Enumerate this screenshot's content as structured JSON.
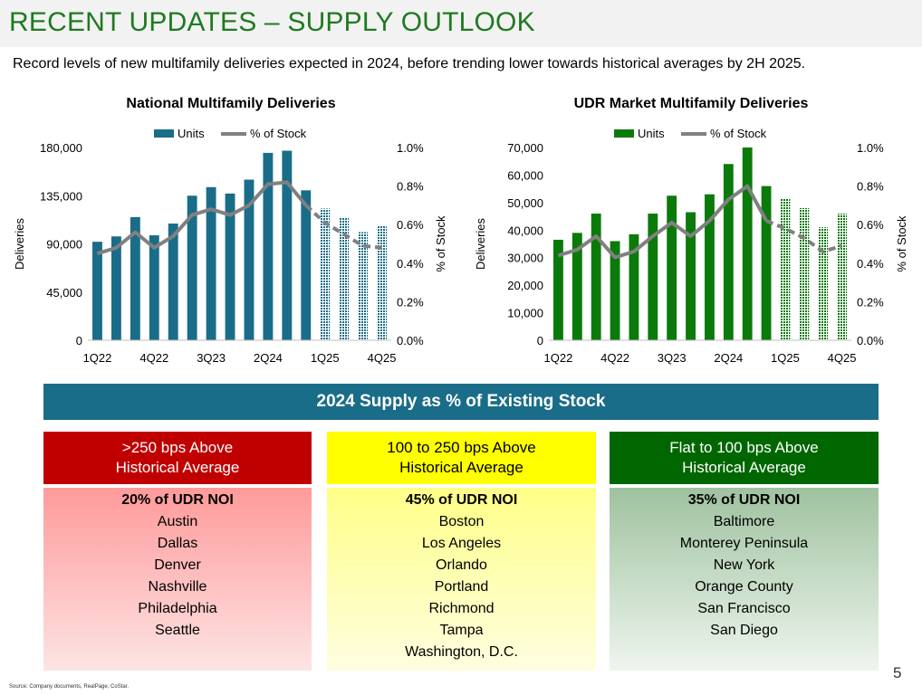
{
  "header": {
    "title": "RECENT UPDATES – SUPPLY OUTLOOK",
    "subtitle": "Record levels of new multifamily deliveries expected in 2024, before trending lower towards historical averages by 2H 2025."
  },
  "colors": {
    "title_green": "#1f7a1f",
    "national_bar": "#1a6d88",
    "udr_bar": "#0a7a0a",
    "line_gray": "#808080",
    "banner_blue": "#1a6d88",
    "red": "#c00000",
    "yellow": "#ffff00",
    "green": "#006600"
  },
  "chart_data": [
    {
      "type": "bar",
      "title": "National Multifamily Deliveries",
      "legend": [
        "Units",
        "% of Stock"
      ],
      "ylabel": "Deliveries",
      "y2label": "% of Stock",
      "ylim": [
        0,
        180000
      ],
      "y2lim": [
        0,
        1.0
      ],
      "yticks": [
        "180,000",
        "135,000",
        "90,000",
        "45,000",
        "0"
      ],
      "y2ticks": [
        "1.0%",
        "0.8%",
        "0.6%",
        "0.4%",
        "0.2%",
        "0.0%"
      ],
      "categories": [
        "1Q22",
        "2Q22",
        "3Q22",
        "4Q22",
        "1Q23",
        "2Q23",
        "3Q23",
        "4Q23",
        "1Q24",
        "2Q24",
        "3Q24",
        "4Q24",
        "1Q25",
        "2Q25",
        "3Q25",
        "4Q25"
      ],
      "xticklabels": [
        "1Q22",
        "4Q22",
        "3Q23",
        "2Q24",
        "1Q25",
        "4Q25"
      ],
      "xtick_indices": [
        0,
        3,
        6,
        9,
        12,
        15
      ],
      "forecast_start_index": 12,
      "series": [
        {
          "name": "Units",
          "values": [
            92000,
            97000,
            115000,
            98000,
            109000,
            135000,
            143000,
            137000,
            150000,
            175000,
            177000,
            140000,
            123000,
            115000,
            101000,
            107000
          ]
        },
        {
          "name": "% of Stock",
          "values": [
            0.45,
            0.48,
            0.56,
            0.48,
            0.54,
            0.65,
            0.68,
            0.65,
            0.7,
            0.81,
            0.82,
            0.7,
            0.61,
            0.55,
            0.49,
            0.48
          ]
        }
      ]
    },
    {
      "type": "bar",
      "title": "UDR Market Multifamily Deliveries",
      "legend": [
        "Units",
        "% of Stock"
      ],
      "ylabel": "Deliveries",
      "y2label": "% of Stock",
      "ylim": [
        0,
        70000
      ],
      "y2lim": [
        0,
        1.0
      ],
      "yticks": [
        "70,000",
        "60,000",
        "50,000",
        "40,000",
        "30,000",
        "20,000",
        "10,000",
        "0"
      ],
      "y2ticks": [
        "1.0%",
        "0.8%",
        "0.6%",
        "0.4%",
        "0.2%",
        "0.0%"
      ],
      "categories": [
        "1Q22",
        "2Q22",
        "3Q22",
        "4Q22",
        "1Q23",
        "2Q23",
        "3Q23",
        "4Q23",
        "1Q24",
        "2Q24",
        "3Q24",
        "4Q24",
        "1Q25",
        "2Q25",
        "3Q25",
        "4Q25"
      ],
      "xticklabels": [
        "1Q22",
        "4Q22",
        "3Q23",
        "2Q24",
        "1Q25",
        "4Q25"
      ],
      "xtick_indices": [
        0,
        3,
        6,
        9,
        12,
        15
      ],
      "forecast_start_index": 12,
      "series": [
        {
          "name": "Units",
          "values": [
            36500,
            39000,
            46000,
            36000,
            38500,
            46000,
            52500,
            46500,
            53000,
            64000,
            70000,
            56000,
            51500,
            48000,
            41000,
            46000
          ]
        },
        {
          "name": "% of Stock",
          "values": [
            0.44,
            0.47,
            0.54,
            0.43,
            0.46,
            0.54,
            0.61,
            0.54,
            0.62,
            0.73,
            0.8,
            0.62,
            0.58,
            0.53,
            0.46,
            0.49
          ]
        }
      ]
    }
  ],
  "banner": {
    "label": "2024 Supply as % of Existing Stock"
  },
  "columns": [
    {
      "head_line1": ">250 bps Above",
      "head_line2": "Historical Average",
      "noi": "20% of UDR NOI",
      "markets": [
        "Austin",
        "Dallas",
        "Denver",
        "Nashville",
        "Philadelphia",
        "Seattle"
      ]
    },
    {
      "head_line1": "100 to 250 bps Above",
      "head_line2": "Historical Average",
      "noi": "45% of UDR NOI",
      "markets": [
        "Boston",
        "Los Angeles",
        "Orlando",
        "Portland",
        "Richmond",
        "Tampa",
        "Washington, D.C."
      ]
    },
    {
      "head_line1": "Flat to 100 bps Above",
      "head_line2": "Historical Average",
      "noi": "35% of UDR NOI",
      "markets": [
        "Baltimore",
        "Monterey Peninsula",
        "New York",
        "Orange County",
        "San Francisco",
        "San Diego"
      ]
    }
  ],
  "footer": {
    "source": "Source: Company documents, RealPage, CoStar.",
    "page_number": "5"
  }
}
